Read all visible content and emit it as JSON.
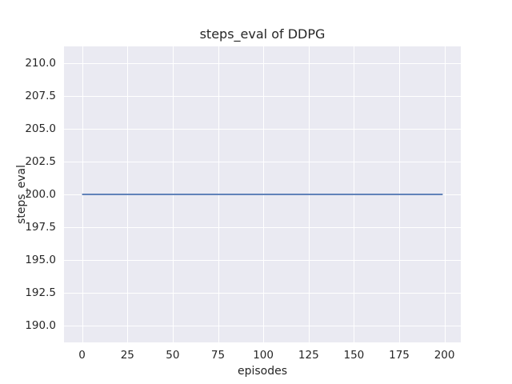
{
  "chart_data": {
    "type": "line",
    "title": "steps_eval of DDPG",
    "xlabel": "episodes",
    "ylabel": "steps_eval",
    "xlim": [
      -10,
      209
    ],
    "ylim": [
      188.75,
      211.25
    ],
    "xticks": [
      0,
      25,
      50,
      75,
      100,
      125,
      150,
      175,
      200
    ],
    "xtick_labels": [
      "0",
      "25",
      "50",
      "75",
      "100",
      "125",
      "150",
      "175",
      "200"
    ],
    "yticks": [
      190.0,
      192.5,
      195.0,
      197.5,
      200.0,
      202.5,
      205.0,
      207.5,
      210.0
    ],
    "ytick_labels": [
      "190.0",
      "192.5",
      "195.0",
      "197.5",
      "200.0",
      "202.5",
      "205.0",
      "207.5",
      "210.0"
    ],
    "grid": true,
    "legend": "none",
    "series": [
      {
        "name": "steps_eval",
        "points": [
          [
            0,
            200
          ],
          [
            199,
            200
          ]
        ],
        "note": "constant value 200 across all episodes"
      }
    ],
    "colors": {
      "figure_background": "#ffffff",
      "axes_background": "#eaeaf2",
      "gridline": "#ffffff",
      "line": "#4c72b0",
      "text": "#262626"
    },
    "line_width": 1.8
  }
}
